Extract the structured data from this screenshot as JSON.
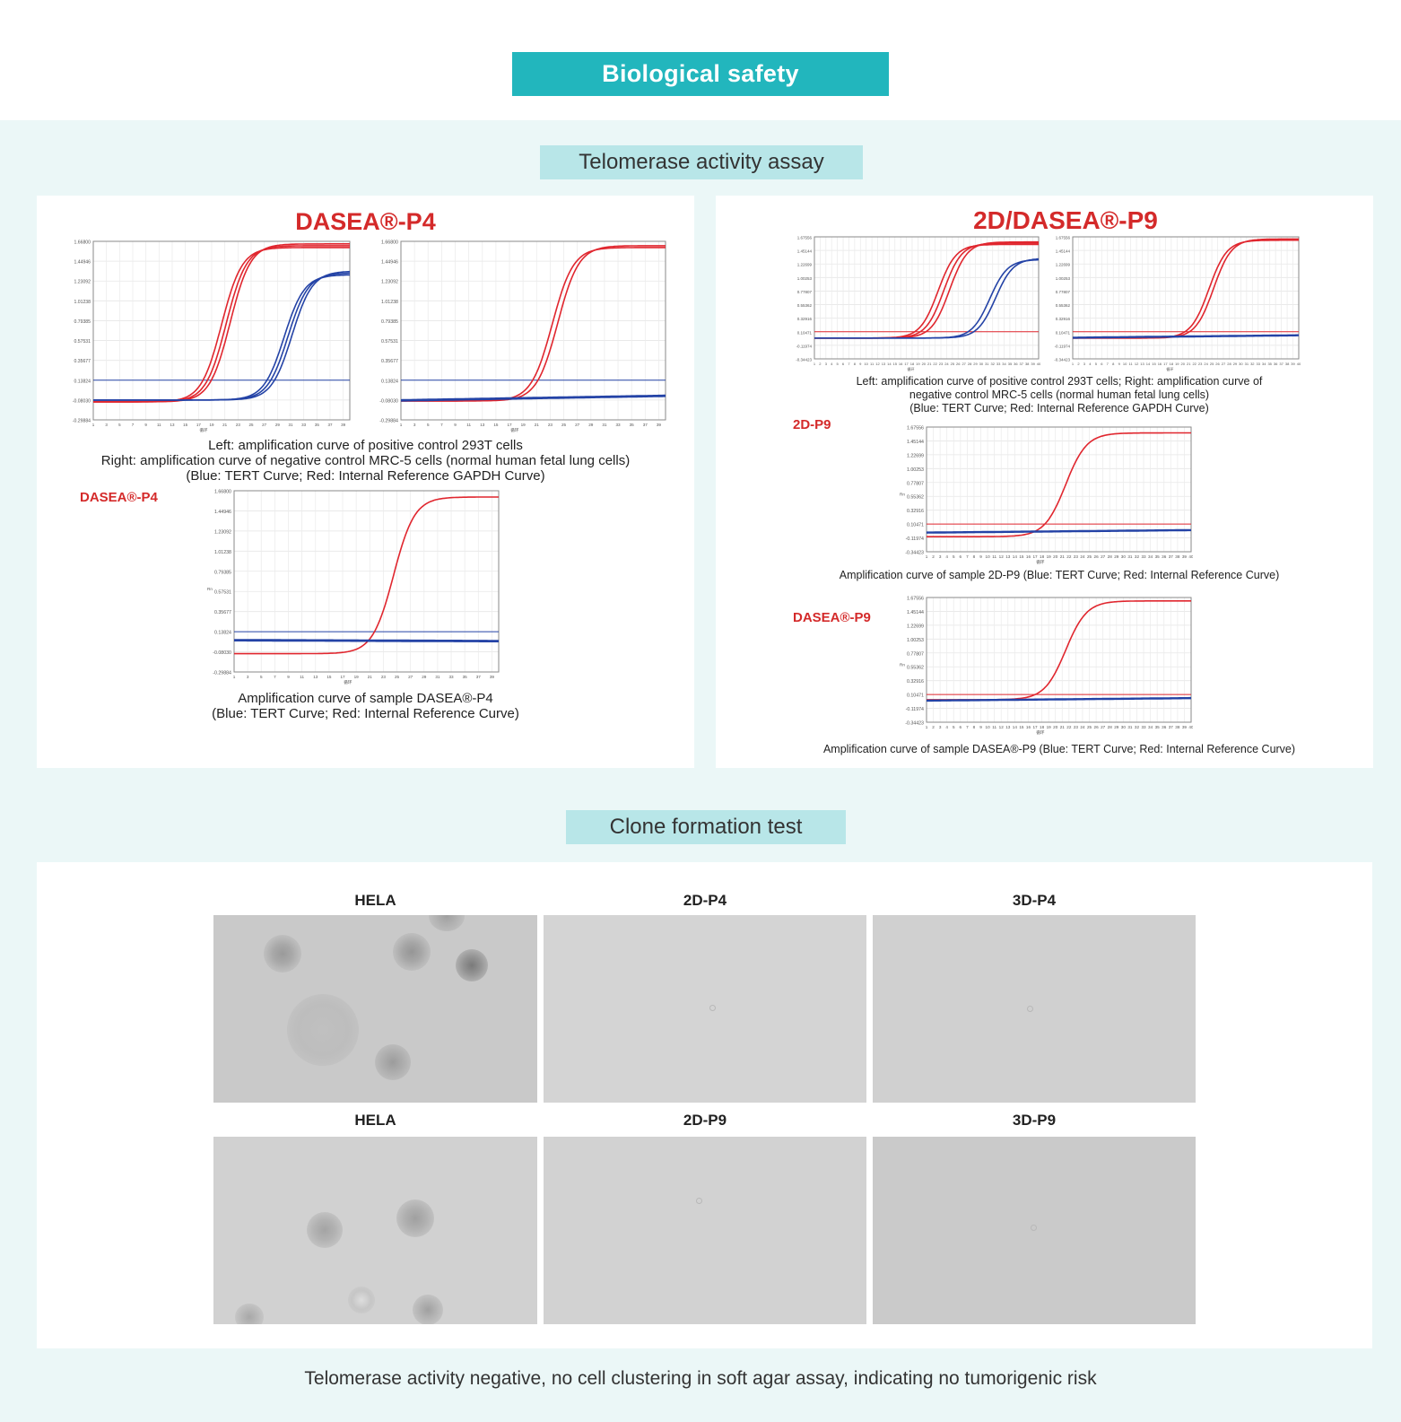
{
  "header": {
    "title": "Biological safety"
  },
  "telomerase": {
    "section_title": "Telomerase activity assay",
    "left_panel": {
      "title": "DASEA®-P4",
      "caption_1": "Left: amplification curve of positive control 293T cells",
      "caption_2": "Right: amplification curve of negative control MRC-5 cells (normal human fetal lung cells)",
      "caption_3": "(Blue: TERT Curve;  Red: Internal Reference GAPDH Curve)",
      "sample_label": "DASEA®-P4",
      "sample_caption_1": "Amplification curve of sample DASEA®-P4",
      "sample_caption_2": "(Blue: TERT Curve; Red: Internal Reference Curve)"
    },
    "right_panel": {
      "title": "2D/DASEA®-P9",
      "caption_1": "Left: amplification curve of positive control 293T cells; Right: amplification curve of",
      "caption_2": "negative control MRC-5 cells (normal human fetal lung cells)",
      "caption_3": "(Blue: TERT Curve;  Red: Internal Reference GAPDH Curve)",
      "sample1_label": "2D-P9",
      "sample1_caption": "Amplification curve of sample 2D-P9 (Blue: TERT Curve; Red: Internal Reference Curve)",
      "sample2_label": "DASEA®-P9",
      "sample2_caption": "Amplification curve of sample DASEA®-P9 (Blue: TERT Curve; Red: Internal Reference Curve)"
    }
  },
  "clone": {
    "section_title": "Clone formation test",
    "row1": [
      "HELA",
      "2D-P4",
      "3D-P4"
    ],
    "row2": [
      "HELA",
      "2D-P9",
      "3D-P9"
    ]
  },
  "footer": {
    "text": "Telomerase activity negative, no cell clustering in soft agar assay, indicating no tumorigenic risk"
  },
  "chart_data": [
    {
      "id": "p4-positive",
      "type": "line",
      "title": "",
      "xlabel": "循环",
      "ylabel": "",
      "xlim": [
        1,
        40
      ],
      "ylim": [
        -0.29884,
        1.668
      ],
      "ticks_y": [
        "1.66800",
        "1.44946",
        "1.23092",
        "1.01238",
        "0.79385",
        "0.57531",
        "0.35677",
        "0.13824",
        "-0.08030",
        "-0.29884"
      ],
      "ticks_x": [
        "1",
        "3",
        "5",
        "7",
        "9",
        "11",
        "13",
        "15",
        "17",
        "19",
        "21",
        "23",
        "25",
        "27",
        "29",
        "31",
        "33",
        "35",
        "37",
        "39"
      ],
      "threshold": 0.13824,
      "series": [
        {
          "name": "GAPDH",
          "color": "red",
          "start": -0.1,
          "plateau": 1.6,
          "midpoints": [
            20.5,
            21.2,
            21.8
          ]
        },
        {
          "name": "TERT",
          "color": "blue",
          "start": -0.08,
          "plateau": 1.3,
          "midpoints": [
            30.0,
            30.6,
            31.2
          ]
        }
      ]
    },
    {
      "id": "p4-negative",
      "type": "line",
      "title": "",
      "xlabel": "循环",
      "ylabel": "",
      "xlim": [
        1,
        40
      ],
      "ylim": [
        -0.29884,
        1.668
      ],
      "ticks_y": [
        "1.66800",
        "1.44946",
        "1.23092",
        "1.01238",
        "0.79385",
        "0.57531",
        "0.35677",
        "0.13824",
        "-0.08030",
        "-0.29884"
      ],
      "ticks_x": [
        "1",
        "3",
        "5",
        "7",
        "9",
        "11",
        "13",
        "15",
        "17",
        "19",
        "21",
        "23",
        "25",
        "27",
        "29",
        "31",
        "33",
        "35",
        "37",
        "39"
      ],
      "threshold": 0.13824,
      "series": [
        {
          "name": "GAPDH",
          "color": "red",
          "start": -0.09,
          "plateau": 1.6,
          "midpoints": [
            23.3,
            24.1
          ]
        },
        {
          "name": "TERT",
          "color": "blue",
          "start": -0.09,
          "plateau": -0.04,
          "midpoints": []
        }
      ]
    },
    {
      "id": "p4-sample",
      "type": "line",
      "title": "",
      "xlabel": "循环",
      "ylabel": "Rn",
      "xlim": [
        1,
        40
      ],
      "ylim": [
        -0.29884,
        1.668
      ],
      "ticks_y": [
        "1.66800",
        "1.44946",
        "1.23092",
        "1.01238",
        "0.79385",
        "0.57531",
        "0.35677",
        "0.13824",
        "-0.08030",
        "-0.29884"
      ],
      "ticks_x": [
        "1",
        "3",
        "5",
        "7",
        "9",
        "11",
        "13",
        "15",
        "17",
        "19",
        "21",
        "23",
        "25",
        "27",
        "29",
        "31",
        "33",
        "35",
        "37",
        "39"
      ],
      "threshold": 0.13824,
      "series": [
        {
          "name": "Internal Reference",
          "color": "red",
          "start": -0.1,
          "plateau": 1.6,
          "midpoints": [
            24.5
          ]
        },
        {
          "name": "TERT",
          "color": "blue",
          "start": 0.04,
          "plateau": 0.03,
          "midpoints": []
        }
      ]
    },
    {
      "id": "p9-positive",
      "type": "line",
      "title": "",
      "xlabel": "循环",
      "ylabel": "",
      "xlim": [
        1,
        40
      ],
      "ylim": [
        -0.34423,
        1.675
      ],
      "ticks_y": [
        "1.67556",
        "1.45144",
        "1.22699",
        "1.00253",
        "0.77807",
        "0.55362",
        "0.32916",
        "0.10471",
        "-0.11974",
        "-0.34423"
      ],
      "ticks_x": [
        "1",
        "2",
        "3",
        "4",
        "5",
        "6",
        "7",
        "8",
        "9",
        "10",
        "11",
        "12",
        "13",
        "14",
        "15",
        "16",
        "17",
        "18",
        "19",
        "20",
        "21",
        "22",
        "23",
        "24",
        "25",
        "26",
        "27",
        "28",
        "29",
        "30",
        "31",
        "32",
        "33",
        "34",
        "35",
        "36",
        "37",
        "38",
        "39",
        "40"
      ],
      "threshold": 0.10471,
      "series": [
        {
          "name": "GAPDH",
          "color": "red",
          "start": 0.0,
          "plateau": 1.55,
          "midpoints": [
            22.5,
            23.5,
            24.5
          ]
        },
        {
          "name": "TERT",
          "color": "blue",
          "start": 0.0,
          "plateau": 1.3,
          "midpoints": [
            31.5,
            32.5
          ]
        }
      ]
    },
    {
      "id": "p9-negative",
      "type": "line",
      "title": "",
      "xlabel": "循环",
      "ylabel": "",
      "xlim": [
        1,
        40
      ],
      "ylim": [
        -0.34423,
        1.675
      ],
      "ticks_y": [
        "1.67556",
        "1.45144",
        "1.22699",
        "1.00253",
        "0.77807",
        "0.55362",
        "0.32916",
        "0.10471",
        "-0.11974",
        "-0.34423"
      ],
      "ticks_x": [
        "1",
        "2",
        "3",
        "4",
        "5",
        "6",
        "7",
        "8",
        "9",
        "10",
        "11",
        "12",
        "13",
        "14",
        "15",
        "16",
        "17",
        "18",
        "19",
        "20",
        "21",
        "22",
        "23",
        "24",
        "25",
        "26",
        "27",
        "28",
        "29",
        "30",
        "31",
        "32",
        "33",
        "34",
        "35",
        "36",
        "37",
        "38",
        "39",
        "40"
      ],
      "threshold": 0.10471,
      "series": [
        {
          "name": "GAPDH",
          "color": "red",
          "start": 0.0,
          "plateau": 1.62,
          "midpoints": [
            24.5,
            25.3
          ]
        },
        {
          "name": "TERT",
          "color": "blue",
          "start": 0.0,
          "plateau": 0.04,
          "midpoints": []
        }
      ]
    },
    {
      "id": "p9-sample-2d",
      "type": "line",
      "title": "",
      "xlabel": "循环",
      "ylabel": "Rn",
      "xlim": [
        1,
        40
      ],
      "ylim": [
        -0.34423,
        1.675
      ],
      "ticks_y": [
        "1.67556",
        "1.45144",
        "1.22699",
        "1.00253",
        "0.77807",
        "0.55362",
        "0.32916",
        "0.10471",
        "-0.11974",
        "-0.34423"
      ],
      "ticks_x": [
        "1",
        "2",
        "3",
        "4",
        "5",
        "6",
        "7",
        "8",
        "9",
        "10",
        "11",
        "12",
        "13",
        "14",
        "15",
        "16",
        "17",
        "18",
        "19",
        "20",
        "21",
        "22",
        "23",
        "24",
        "25",
        "26",
        "27",
        "28",
        "29",
        "30",
        "31",
        "32",
        "33",
        "34",
        "35",
        "36",
        "37",
        "38",
        "39",
        "40"
      ],
      "threshold": 0.10471,
      "series": [
        {
          "name": "Internal Reference",
          "color": "red",
          "start": -0.1,
          "plateau": 1.58,
          "midpoints": [
            21.5
          ]
        },
        {
          "name": "TERT",
          "color": "blue",
          "start": -0.04,
          "plateau": 0.0,
          "midpoints": []
        }
      ]
    },
    {
      "id": "p9-sample-dasea",
      "type": "line",
      "title": "",
      "xlabel": "循环",
      "ylabel": "Rn",
      "xlim": [
        1,
        40
      ],
      "ylim": [
        -0.34423,
        1.675
      ],
      "ticks_y": [
        "1.67556",
        "1.45144",
        "1.22699",
        "1.00253",
        "0.77807",
        "0.55362",
        "0.32916",
        "0.10471",
        "-0.11974",
        "-0.34423"
      ],
      "ticks_x": [
        "1",
        "2",
        "3",
        "4",
        "5",
        "6",
        "7",
        "8",
        "9",
        "10",
        "11",
        "12",
        "13",
        "14",
        "15",
        "16",
        "17",
        "18",
        "19",
        "20",
        "21",
        "22",
        "23",
        "24",
        "25",
        "26",
        "27",
        "28",
        "29",
        "30",
        "31",
        "32",
        "33",
        "34",
        "35",
        "36",
        "37",
        "38",
        "39",
        "40"
      ],
      "threshold": 0.10471,
      "series": [
        {
          "name": "Internal Reference",
          "color": "red",
          "start": 0.02,
          "plateau": 1.62,
          "midpoints": [
            21.5
          ]
        },
        {
          "name": "TERT",
          "color": "blue",
          "start": 0.0,
          "plateau": 0.04,
          "midpoints": []
        }
      ]
    }
  ]
}
